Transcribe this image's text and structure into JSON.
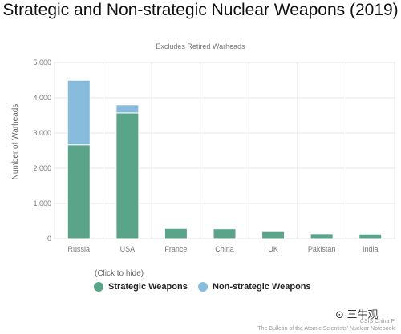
{
  "colors": {
    "strategic": "#5aa58a",
    "non_strategic": "#87bcdc",
    "grid": "#e6e6e6",
    "axis_text": "#777777"
  },
  "legend": {
    "hint": "(Click to hide)"
  },
  "source": {
    "line1": "CSIS China P",
    "line2": "The Bulletin of the Atomic Scientists' Nuclear Notebook"
  },
  "watermark": "⊙ 三牛观",
  "chart_data": {
    "type": "bar",
    "stacked": true,
    "title": "Strategic and Non-strategic Nuclear Weapons (2019)",
    "subtitle": "Excludes Retired Warheads",
    "xlabel": "",
    "ylabel": "Number of Warheads",
    "ylim": [
      0,
      5000
    ],
    "yticks": [
      0,
      1000,
      2000,
      3000,
      4000,
      5000
    ],
    "ytick_labels": [
      "0",
      "1,000",
      "2,000",
      "3,000",
      "4,000",
      "5,000"
    ],
    "categories": [
      "Russia",
      "USA",
      "France",
      "China",
      "UK",
      "Pakistan",
      "India"
    ],
    "series": [
      {
        "name": "Strategic Weapons",
        "values": [
          2665,
          3570,
          290,
          280,
          200,
          140,
          130
        ]
      },
      {
        "name": "Non-strategic Weapons",
        "values": [
          1830,
          230,
          0,
          0,
          0,
          0,
          0
        ]
      }
    ],
    "grid": true,
    "legend_position": "bottom-center"
  }
}
